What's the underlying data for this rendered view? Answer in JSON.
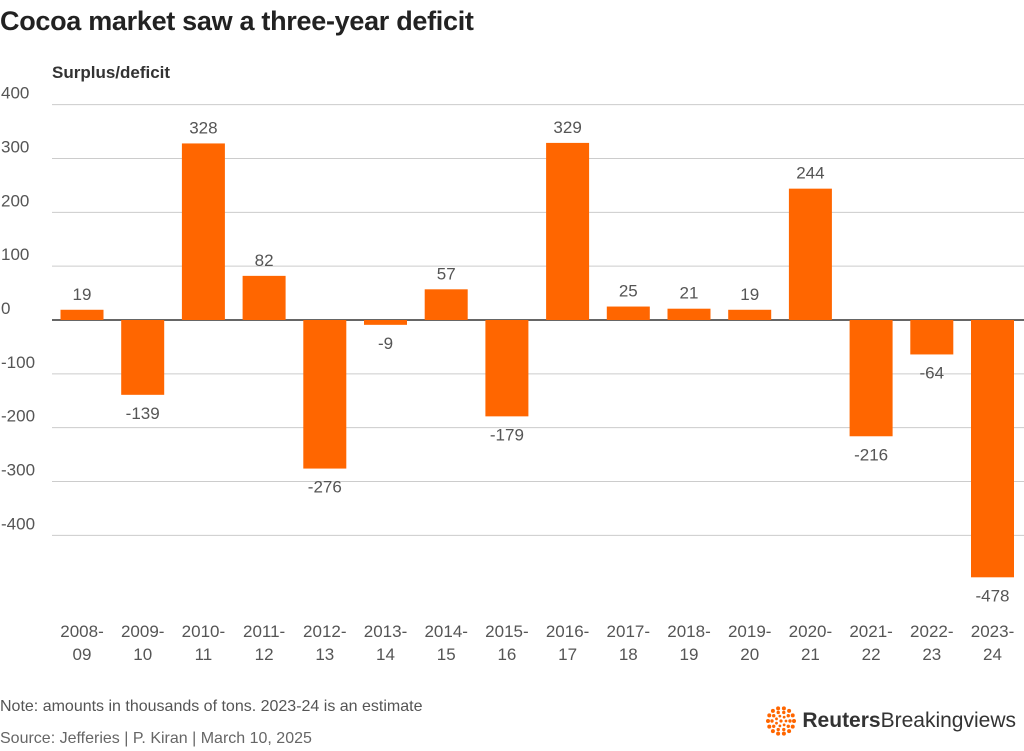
{
  "title": "Cocoa market saw a three-year deficit",
  "note": "Note: amounts in thousands of tons. 2023-24 is an estimate",
  "source": "Source: Jefferies | P. Kiran | March 10, 2025",
  "brand": {
    "name_bold": "Reuters",
    "name_regular": "Breakingviews",
    "logo_icon": "reuters-dot-logo-icon"
  },
  "colors": {
    "bar": "#FF6600",
    "grid": "#cccccc",
    "axis": "#333333",
    "text": "#555555"
  },
  "chart_data": {
    "type": "bar",
    "title": "Cocoa market saw a three-year deficit",
    "ylabel": "Surplus/deficit",
    "xlabel": "",
    "categories": [
      [
        "2008-",
        "09"
      ],
      [
        "2009-",
        "10"
      ],
      [
        "2010-",
        "11"
      ],
      [
        "2011-",
        "12"
      ],
      [
        "2012-",
        "13"
      ],
      [
        "2013-",
        "14"
      ],
      [
        "2014-",
        "15"
      ],
      [
        "2015-",
        "16"
      ],
      [
        "2016-",
        "17"
      ],
      [
        "2017-",
        "18"
      ],
      [
        "2018-",
        "19"
      ],
      [
        "2019-",
        "20"
      ],
      [
        "2020-",
        "21"
      ],
      [
        "2021-",
        "22"
      ],
      [
        "2022-",
        "23"
      ],
      [
        "2023-",
        "24"
      ]
    ],
    "values": [
      19,
      -139,
      328,
      82,
      -276,
      -9,
      57,
      -179,
      329,
      25,
      21,
      19,
      244,
      -216,
      -64,
      -478
    ],
    "yticks": [
      400,
      300,
      200,
      100,
      0,
      -100,
      -200,
      -300,
      -400
    ],
    "ylim": [
      -500,
      400
    ],
    "grid": true,
    "legend": "none"
  }
}
